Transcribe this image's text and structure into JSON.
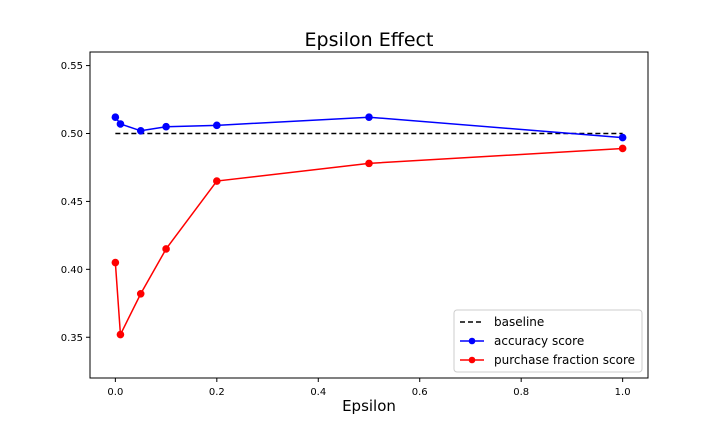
{
  "chart_data": {
    "type": "line",
    "title": "Epsilon Effect",
    "xlabel": "Epsilon",
    "ylabel": "",
    "xlim": [
      -0.05,
      1.05
    ],
    "ylim": [
      0.32,
      0.56
    ],
    "xticks": [
      0.0,
      0.2,
      0.4,
      0.6,
      0.8,
      1.0
    ],
    "xtick_labels": [
      "0.0",
      "0.2",
      "0.4",
      "0.6",
      "0.8",
      "1.0"
    ],
    "yticks": [
      0.35,
      0.4,
      0.45,
      0.5,
      0.55
    ],
    "ytick_labels": [
      "0.35",
      "0.40",
      "0.45",
      "0.50",
      "0.55"
    ],
    "grid": false,
    "legend_position": "lower-right",
    "series": [
      {
        "name": "baseline",
        "color": "#000000",
        "style": "dashed",
        "marker": false,
        "x": [
          0.0,
          1.0
        ],
        "y": [
          0.5,
          0.5
        ]
      },
      {
        "name": "accuracy score",
        "color": "#0000ff",
        "style": "solid",
        "marker": true,
        "x": [
          0.0,
          0.01,
          0.05,
          0.1,
          0.2,
          0.5,
          1.0
        ],
        "y": [
          0.512,
          0.507,
          0.502,
          0.505,
          0.506,
          0.512,
          0.497
        ]
      },
      {
        "name": "purchase fraction score",
        "color": "#ff0000",
        "style": "solid",
        "marker": true,
        "x": [
          0.0,
          0.01,
          0.05,
          0.1,
          0.2,
          0.5,
          1.0
        ],
        "y": [
          0.405,
          0.352,
          0.382,
          0.415,
          0.465,
          0.478,
          0.489
        ]
      }
    ]
  }
}
